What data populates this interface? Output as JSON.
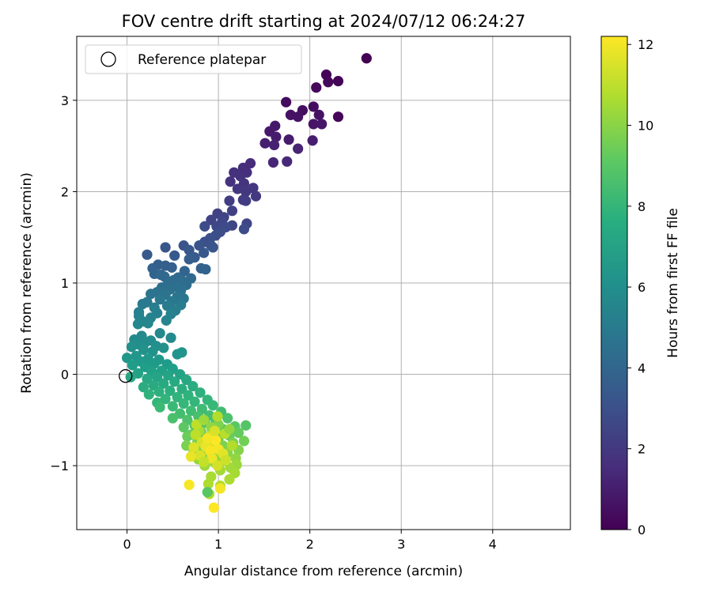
{
  "chart_data": {
    "type": "scatter",
    "title": "FOV centre drift starting at 2024/07/12 06:24:27",
    "xlabel": "Angular distance from reference (arcmin)",
    "ylabel": "Rotation from reference (arcmin)",
    "xlim": [
      -0.55,
      4.85
    ],
    "ylim": [
      -1.7,
      3.7
    ],
    "xticks": [
      "0",
      "1",
      "2",
      "3",
      "4"
    ],
    "yticks": [
      "−1",
      "0",
      "1",
      "2",
      "3"
    ],
    "grid": true,
    "legend": {
      "placement": "top-left",
      "entries": [
        "Reference platepar"
      ]
    },
    "reference_point": {
      "x": 0,
      "y": 0
    },
    "colorbar": {
      "label": "Hours from first FF file",
      "range": [
        0,
        12.2
      ],
      "ticks": [
        "0",
        "2",
        "4",
        "6",
        "8",
        "10",
        "12"
      ],
      "colormap": "viridis"
    },
    "points": [
      {
        "x": 2.62,
        "y": 3.46,
        "h": 0.0
      },
      {
        "x": 2.18,
        "y": 3.28,
        "h": 0.1
      },
      {
        "x": 2.31,
        "y": 3.21,
        "h": 0.15
      },
      {
        "x": 2.2,
        "y": 3.2,
        "h": 0.2
      },
      {
        "x": 2.07,
        "y": 3.14,
        "h": 0.3
      },
      {
        "x": 1.74,
        "y": 2.98,
        "h": 0.35
      },
      {
        "x": 2.04,
        "y": 2.93,
        "h": 0.4
      },
      {
        "x": 1.92,
        "y": 2.89,
        "h": 0.5
      },
      {
        "x": 1.79,
        "y": 2.84,
        "h": 0.55
      },
      {
        "x": 1.87,
        "y": 2.82,
        "h": 0.6
      },
      {
        "x": 2.1,
        "y": 2.84,
        "h": 0.6
      },
      {
        "x": 2.31,
        "y": 2.82,
        "h": 0.2
      },
      {
        "x": 2.04,
        "y": 2.74,
        "h": 0.7
      },
      {
        "x": 2.13,
        "y": 2.74,
        "h": 0.75
      },
      {
        "x": 1.62,
        "y": 2.72,
        "h": 0.8
      },
      {
        "x": 1.56,
        "y": 2.66,
        "h": 0.85
      },
      {
        "x": 1.63,
        "y": 2.6,
        "h": 0.9
      },
      {
        "x": 1.77,
        "y": 2.57,
        "h": 0.95
      },
      {
        "x": 2.03,
        "y": 2.56,
        "h": 1.0
      },
      {
        "x": 1.51,
        "y": 2.53,
        "h": 1.05
      },
      {
        "x": 1.61,
        "y": 2.51,
        "h": 1.1
      },
      {
        "x": 1.87,
        "y": 2.47,
        "h": 1.2
      },
      {
        "x": 1.6,
        "y": 2.32,
        "h": 1.3
      },
      {
        "x": 1.75,
        "y": 2.33,
        "h": 1.35
      },
      {
        "x": 1.35,
        "y": 2.31,
        "h": 1.5
      },
      {
        "x": 1.27,
        "y": 2.26,
        "h": 1.6
      },
      {
        "x": 1.31,
        "y": 2.21,
        "h": 1.65
      },
      {
        "x": 1.17,
        "y": 2.21,
        "h": 1.7
      },
      {
        "x": 1.24,
        "y": 2.17,
        "h": 1.75
      },
      {
        "x": 1.13,
        "y": 2.11,
        "h": 1.8
      },
      {
        "x": 1.28,
        "y": 2.09,
        "h": 1.85
      },
      {
        "x": 1.38,
        "y": 2.04,
        "h": 1.9
      },
      {
        "x": 1.21,
        "y": 2.03,
        "h": 1.95
      },
      {
        "x": 1.3,
        "y": 2.0,
        "h": 2.0
      },
      {
        "x": 1.41,
        "y": 1.95,
        "h": 2.05
      },
      {
        "x": 1.27,
        "y": 1.91,
        "h": 2.1
      },
      {
        "x": 1.3,
        "y": 1.9,
        "h": 2.15
      },
      {
        "x": 1.12,
        "y": 1.9,
        "h": 2.2
      },
      {
        "x": 1.15,
        "y": 1.79,
        "h": 2.3
      },
      {
        "x": 0.99,
        "y": 1.76,
        "h": 2.35
      },
      {
        "x": 1.06,
        "y": 1.72,
        "h": 2.4
      },
      {
        "x": 0.92,
        "y": 1.69,
        "h": 2.45
      },
      {
        "x": 1.15,
        "y": 1.63,
        "h": 2.5
      },
      {
        "x": 1.31,
        "y": 1.65,
        "h": 2.55
      },
      {
        "x": 1.04,
        "y": 1.67,
        "h": 2.6
      },
      {
        "x": 0.98,
        "y": 1.62,
        "h": 2.65
      },
      {
        "x": 1.08,
        "y": 1.61,
        "h": 2.7
      },
      {
        "x": 1.28,
        "y": 1.59,
        "h": 2.75
      },
      {
        "x": 0.85,
        "y": 1.62,
        "h": 2.8
      },
      {
        "x": 1.02,
        "y": 1.56,
        "h": 2.85
      },
      {
        "x": 0.97,
        "y": 1.52,
        "h": 2.9
      },
      {
        "x": 0.91,
        "y": 1.49,
        "h": 2.95
      },
      {
        "x": 0.85,
        "y": 1.45,
        "h": 3.0
      },
      {
        "x": 0.92,
        "y": 1.41,
        "h": 3.05
      },
      {
        "x": 0.79,
        "y": 1.41,
        "h": 3.1
      },
      {
        "x": 0.62,
        "y": 1.41,
        "h": 3.15
      },
      {
        "x": 0.94,
        "y": 1.39,
        "h": 3.2
      },
      {
        "x": 0.42,
        "y": 1.39,
        "h": 3.25
      },
      {
        "x": 0.68,
        "y": 1.36,
        "h": 3.3
      },
      {
        "x": 0.84,
        "y": 1.33,
        "h": 3.35
      },
      {
        "x": 0.52,
        "y": 1.3,
        "h": 3.4
      },
      {
        "x": 0.22,
        "y": 1.31,
        "h": 3.45
      },
      {
        "x": 0.74,
        "y": 1.28,
        "h": 3.5
      },
      {
        "x": 0.68,
        "y": 1.26,
        "h": 3.55
      },
      {
        "x": 0.34,
        "y": 1.2,
        "h": 3.6
      },
      {
        "x": 0.42,
        "y": 1.19,
        "h": 3.65
      },
      {
        "x": 0.49,
        "y": 1.17,
        "h": 3.7
      },
      {
        "x": 0.28,
        "y": 1.16,
        "h": 3.75
      },
      {
        "x": 0.81,
        "y": 1.16,
        "h": 3.8
      },
      {
        "x": 0.86,
        "y": 1.15,
        "h": 3.85
      },
      {
        "x": 0.63,
        "y": 1.13,
        "h": 3.9
      },
      {
        "x": 0.3,
        "y": 1.1,
        "h": 3.95
      },
      {
        "x": 0.37,
        "y": 1.09,
        "h": 4.0
      },
      {
        "x": 0.41,
        "y": 1.07,
        "h": 4.05
      },
      {
        "x": 0.56,
        "y": 1.06,
        "h": 4.1
      },
      {
        "x": 0.7,
        "y": 1.05,
        "h": 4.15
      },
      {
        "x": 0.51,
        "y": 1.03,
        "h": 4.2
      },
      {
        "x": 0.61,
        "y": 1.02,
        "h": 4.25
      },
      {
        "x": 0.45,
        "y": 1.0,
        "h": 4.3
      },
      {
        "x": 0.65,
        "y": 0.98,
        "h": 4.35
      },
      {
        "x": 0.53,
        "y": 0.96,
        "h": 4.4
      },
      {
        "x": 0.38,
        "y": 0.95,
        "h": 4.45
      },
      {
        "x": 0.47,
        "y": 0.93,
        "h": 4.5
      },
      {
        "x": 0.59,
        "y": 0.92,
        "h": 4.55
      },
      {
        "x": 0.33,
        "y": 0.9,
        "h": 4.6
      },
      {
        "x": 0.26,
        "y": 0.88,
        "h": 4.65
      },
      {
        "x": 0.42,
        "y": 0.87,
        "h": 4.7
      },
      {
        "x": 0.55,
        "y": 0.85,
        "h": 4.75
      },
      {
        "x": 0.62,
        "y": 0.83,
        "h": 4.8
      },
      {
        "x": 0.36,
        "y": 0.82,
        "h": 4.85
      },
      {
        "x": 0.49,
        "y": 0.8,
        "h": 4.9
      },
      {
        "x": 0.22,
        "y": 0.79,
        "h": 4.95
      },
      {
        "x": 0.17,
        "y": 0.77,
        "h": 5.0
      },
      {
        "x": 0.59,
        "y": 0.76,
        "h": 5.05
      },
      {
        "x": 0.44,
        "y": 0.75,
        "h": 5.1
      },
      {
        "x": 0.3,
        "y": 0.73,
        "h": 5.15
      },
      {
        "x": 0.53,
        "y": 0.7,
        "h": 5.2
      },
      {
        "x": 0.13,
        "y": 0.68,
        "h": 5.25
      },
      {
        "x": 0.33,
        "y": 0.67,
        "h": 5.3
      },
      {
        "x": 0.48,
        "y": 0.66,
        "h": 5.35
      },
      {
        "x": 0.13,
        "y": 0.64,
        "h": 5.4
      },
      {
        "x": 0.26,
        "y": 0.62,
        "h": 5.45
      },
      {
        "x": 0.43,
        "y": 0.59,
        "h": 5.5
      },
      {
        "x": 0.17,
        "y": 0.58,
        "h": 5.55
      },
      {
        "x": 0.23,
        "y": 0.56,
        "h": 5.6
      },
      {
        "x": 0.12,
        "y": 0.55,
        "h": 5.65
      },
      {
        "x": 0.36,
        "y": 0.45,
        "h": 5.7
      },
      {
        "x": 0.16,
        "y": 0.42,
        "h": 5.75
      },
      {
        "x": 0.48,
        "y": 0.4,
        "h": 5.8
      },
      {
        "x": 0.08,
        "y": 0.38,
        "h": 5.85
      },
      {
        "x": 0.26,
        "y": 0.37,
        "h": 5.9
      },
      {
        "x": 0.2,
        "y": 0.35,
        "h": 5.95
      },
      {
        "x": 0.12,
        "y": 0.33,
        "h": 6.0
      },
      {
        "x": 0.32,
        "y": 0.31,
        "h": 6.05
      },
      {
        "x": 0.05,
        "y": 0.3,
        "h": 6.1
      },
      {
        "x": 0.4,
        "y": 0.29,
        "h": 6.15
      },
      {
        "x": 0.18,
        "y": 0.27,
        "h": 6.2
      },
      {
        "x": 0.28,
        "y": 0.25,
        "h": 6.25
      },
      {
        "x": 0.6,
        "y": 0.24,
        "h": 6.3
      },
      {
        "x": 0.55,
        "y": 0.22,
        "h": 6.35
      },
      {
        "x": 0.1,
        "y": 0.2,
        "h": 6.4
      },
      {
        "x": 0.0,
        "y": 0.18,
        "h": 6.45
      },
      {
        "x": 0.23,
        "y": 0.17,
        "h": 6.5
      },
      {
        "x": 0.35,
        "y": 0.16,
        "h": 6.55
      },
      {
        "x": 0.15,
        "y": 0.14,
        "h": 6.6
      },
      {
        "x": 0.3,
        "y": 0.12,
        "h": 6.65
      },
      {
        "x": 0.44,
        "y": 0.11,
        "h": 6.7
      },
      {
        "x": 0.06,
        "y": 0.1,
        "h": 6.75
      },
      {
        "x": 0.2,
        "y": 0.08,
        "h": 6.8
      },
      {
        "x": 0.5,
        "y": 0.06,
        "h": 6.85
      },
      {
        "x": 0.38,
        "y": 0.04,
        "h": 6.9
      },
      {
        "x": 0.27,
        "y": 0.03,
        "h": 6.95
      },
      {
        "x": 0.12,
        "y": 0.01,
        "h": 7.0
      },
      {
        "x": 0.58,
        "y": 0.0,
        "h": 7.05
      },
      {
        "x": 0.45,
        "y": -0.01,
        "h": 7.1
      },
      {
        "x": 0.33,
        "y": -0.03,
        "h": 7.15
      },
      {
        "x": 0.04,
        "y": -0.03,
        "h": 7.2
      },
      {
        "x": 0.22,
        "y": -0.05,
        "h": 7.25
      },
      {
        "x": 0.65,
        "y": -0.06,
        "h": 7.3
      },
      {
        "x": 0.52,
        "y": -0.08,
        "h": 7.35
      },
      {
        "x": 0.4,
        "y": -0.1,
        "h": 7.4
      },
      {
        "x": 0.29,
        "y": -0.12,
        "h": 7.45
      },
      {
        "x": 0.72,
        "y": -0.13,
        "h": 7.5
      },
      {
        "x": 0.18,
        "y": -0.14,
        "h": 7.55
      },
      {
        "x": 0.6,
        "y": -0.16,
        "h": 7.6
      },
      {
        "x": 0.47,
        "y": -0.18,
        "h": 7.65
      },
      {
        "x": 0.35,
        "y": -0.19,
        "h": 7.7
      },
      {
        "x": 0.8,
        "y": -0.2,
        "h": 7.75
      },
      {
        "x": 0.24,
        "y": -0.22,
        "h": 7.8
      },
      {
        "x": 0.67,
        "y": -0.23,
        "h": 7.85
      },
      {
        "x": 0.55,
        "y": -0.25,
        "h": 7.9
      },
      {
        "x": 0.42,
        "y": -0.27,
        "h": 7.95
      },
      {
        "x": 0.88,
        "y": -0.28,
        "h": 8.0
      },
      {
        "x": 0.74,
        "y": -0.3,
        "h": 8.05
      },
      {
        "x": 0.33,
        "y": -0.31,
        "h": 8.1
      },
      {
        "x": 0.62,
        "y": -0.32,
        "h": 8.15
      },
      {
        "x": 0.94,
        "y": -0.34,
        "h": 8.2
      },
      {
        "x": 0.5,
        "y": -0.35,
        "h": 8.25
      },
      {
        "x": 0.36,
        "y": -0.36,
        "h": 8.3
      },
      {
        "x": 0.82,
        "y": -0.38,
        "h": 8.35
      },
      {
        "x": 0.7,
        "y": -0.4,
        "h": 8.4
      },
      {
        "x": 1.03,
        "y": -0.41,
        "h": 8.45
      },
      {
        "x": 0.58,
        "y": -0.43,
        "h": 8.5
      },
      {
        "x": 0.9,
        "y": -0.45,
        "h": 8.55
      },
      {
        "x": 0.78,
        "y": -0.46,
        "h": 8.6
      },
      {
        "x": 0.5,
        "y": -0.48,
        "h": 8.65
      },
      {
        "x": 1.1,
        "y": -0.48,
        "h": 8.7
      },
      {
        "x": 0.66,
        "y": -0.5,
        "h": 8.75
      },
      {
        "x": 0.97,
        "y": -0.52,
        "h": 8.8
      },
      {
        "x": 0.85,
        "y": -0.53,
        "h": 8.85
      },
      {
        "x": 1.3,
        "y": -0.56,
        "h": 8.9
      },
      {
        "x": 0.74,
        "y": -0.56,
        "h": 8.95
      },
      {
        "x": 1.18,
        "y": -0.57,
        "h": 9.0
      },
      {
        "x": 0.62,
        "y": -0.58,
        "h": 9.05
      },
      {
        "x": 1.05,
        "y": -0.6,
        "h": 9.1
      },
      {
        "x": 0.93,
        "y": -0.61,
        "h": 9.15
      },
      {
        "x": 0.81,
        "y": -0.63,
        "h": 9.2
      },
      {
        "x": 1.22,
        "y": -0.64,
        "h": 9.25
      },
      {
        "x": 0.7,
        "y": -0.66,
        "h": 9.3
      },
      {
        "x": 1.12,
        "y": -0.67,
        "h": 9.35
      },
      {
        "x": 0.66,
        "y": -0.68,
        "h": 9.4
      },
      {
        "x": 1.0,
        "y": -0.7,
        "h": 9.45
      },
      {
        "x": 0.88,
        "y": -0.71,
        "h": 9.5
      },
      {
        "x": 1.28,
        "y": -0.73,
        "h": 9.55
      },
      {
        "x": 0.77,
        "y": -0.74,
        "h": 9.6
      },
      {
        "x": 1.16,
        "y": -0.75,
        "h": 9.65
      },
      {
        "x": 0.65,
        "y": -0.78,
        "h": 9.7
      },
      {
        "x": 1.05,
        "y": -0.78,
        "h": 9.75
      },
      {
        "x": 0.94,
        "y": -0.8,
        "h": 9.8
      },
      {
        "x": 0.84,
        "y": -0.82,
        "h": 9.85
      },
      {
        "x": 1.22,
        "y": -0.83,
        "h": 9.9
      },
      {
        "x": 0.73,
        "y": -0.85,
        "h": 9.95
      },
      {
        "x": 1.1,
        "y": -0.86,
        "h": 10.0
      },
      {
        "x": 0.99,
        "y": -0.88,
        "h": 10.05
      },
      {
        "x": 0.88,
        "y": -0.9,
        "h": 10.1
      },
      {
        "x": 1.19,
        "y": -0.92,
        "h": 10.15
      },
      {
        "x": 0.78,
        "y": -0.93,
        "h": 10.2
      },
      {
        "x": 1.06,
        "y": -0.95,
        "h": 10.25
      },
      {
        "x": 0.96,
        "y": -0.97,
        "h": 10.3
      },
      {
        "x": 1.2,
        "y": -0.99,
        "h": 10.35
      },
      {
        "x": 0.85,
        "y": -1.0,
        "h": 10.4
      },
      {
        "x": 1.13,
        "y": -1.02,
        "h": 10.45
      },
      {
        "x": 1.02,
        "y": -1.05,
        "h": 10.5
      },
      {
        "x": 1.18,
        "y": -1.08,
        "h": 10.55
      },
      {
        "x": 0.92,
        "y": -1.12,
        "h": 10.6
      },
      {
        "x": 1.12,
        "y": -1.15,
        "h": 10.65
      },
      {
        "x": 0.89,
        "y": -1.2,
        "h": 10.7
      },
      {
        "x": 1.02,
        "y": -1.22,
        "h": 10.75
      },
      {
        "x": 0.9,
        "y": -1.31,
        "h": 10.8
      },
      {
        "x": 0.88,
        "y": -1.29,
        "h": 9.0
      },
      {
        "x": 1.0,
        "y": -0.55,
        "h": 9.8
      },
      {
        "x": 0.92,
        "y": -0.58,
        "h": 10.2
      },
      {
        "x": 0.79,
        "y": -0.62,
        "h": 10.6
      },
      {
        "x": 0.75,
        "y": -0.66,
        "h": 11.0
      },
      {
        "x": 0.9,
        "y": -0.68,
        "h": 11.2
      },
      {
        "x": 1.07,
        "y": -0.65,
        "h": 10.9
      },
      {
        "x": 0.82,
        "y": -0.74,
        "h": 11.4
      },
      {
        "x": 0.95,
        "y": -0.76,
        "h": 11.6
      },
      {
        "x": 0.86,
        "y": -0.79,
        "h": 11.8
      },
      {
        "x": 1.0,
        "y": -0.82,
        "h": 12.0
      },
      {
        "x": 0.91,
        "y": -0.84,
        "h": 12.1
      },
      {
        "x": 1.05,
        "y": -0.87,
        "h": 11.7
      },
      {
        "x": 0.8,
        "y": -0.89,
        "h": 11.5
      },
      {
        "x": 0.93,
        "y": -0.92,
        "h": 11.9
      },
      {
        "x": 1.08,
        "y": -0.94,
        "h": 11.3
      },
      {
        "x": 0.84,
        "y": -0.96,
        "h": 11.1
      },
      {
        "x": 0.97,
        "y": -0.72,
        "h": 12.2
      },
      {
        "x": 0.88,
        "y": -0.7,
        "h": 12.0
      },
      {
        "x": 0.73,
        "y": -0.8,
        "h": 11.6
      },
      {
        "x": 0.7,
        "y": -0.9,
        "h": 11.8
      },
      {
        "x": 0.99,
        "y": -1.0,
        "h": 11.4
      },
      {
        "x": 1.15,
        "y": -0.78,
        "h": 10.8
      },
      {
        "x": 0.68,
        "y": -1.21,
        "h": 12.1
      },
      {
        "x": 1.02,
        "y": -1.25,
        "h": 12.0
      },
      {
        "x": 0.95,
        "y": -1.46,
        "h": 12.2
      },
      {
        "x": 0.76,
        "y": -0.55,
        "h": 11.0
      },
      {
        "x": 0.84,
        "y": -0.5,
        "h": 10.4
      },
      {
        "x": 0.99,
        "y": -0.46,
        "h": 10.8
      },
      {
        "x": 1.12,
        "y": -0.6,
        "h": 10.2
      },
      {
        "x": 0.96,
        "y": -0.62,
        "h": 11.5
      }
    ]
  }
}
